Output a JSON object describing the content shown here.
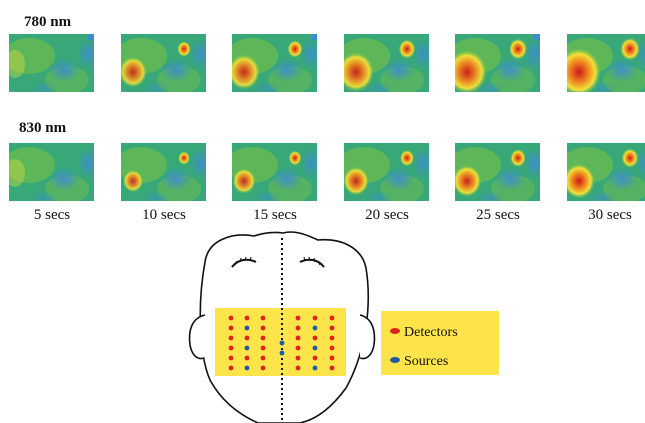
{
  "rows": [
    {
      "label": "780 nm"
    },
    {
      "label": "830 nm"
    }
  ],
  "time_labels": [
    "5 secs",
    "10 secs",
    "15 secs",
    "20 secs",
    "25 secs",
    "30 secs"
  ],
  "legend": {
    "detectors": "Detectors",
    "sources": "Sources"
  },
  "colors": {
    "map_bg": "#38a878",
    "map_mid": "#7cc240",
    "map_blue": "#3c8ad8",
    "map_yellow": "#f2e23a",
    "map_orange": "#f08a20",
    "map_red": "#cc1a1a",
    "probe_pad": "#fde44a",
    "detector_dot": "#e0241f",
    "source_dot": "#1f5aa8"
  }
}
